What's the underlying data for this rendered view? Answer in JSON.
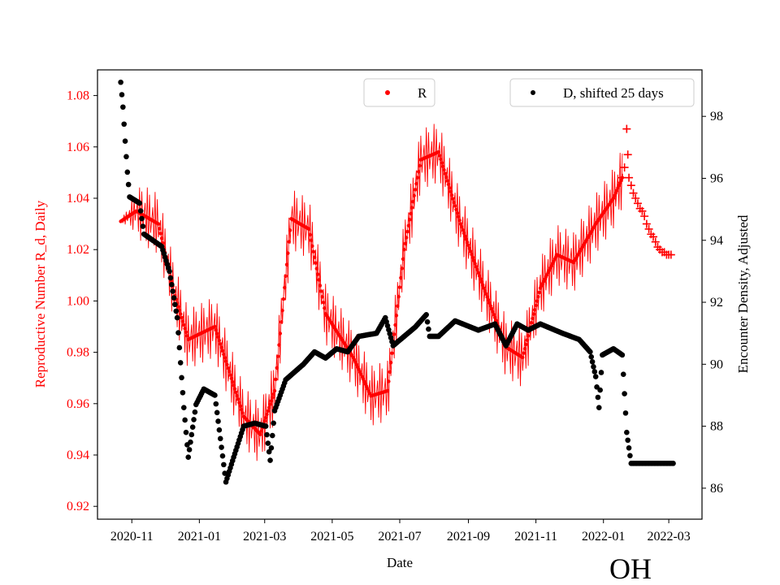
{
  "state_label": "OH",
  "colors": {
    "r_series": "#ff0000",
    "d_series": "#000000",
    "axes": "#000000",
    "background": "#ffffff"
  },
  "chart_data": {
    "type": "scatter",
    "xlabel": "Date",
    "ylabel_left": "Reproductive Number R_d, Daily",
    "ylabel_right": "Encounter Density, Adjusted",
    "xlim": [
      "2020-10-01",
      "2022-03-31"
    ],
    "ylim_left": [
      0.915,
      1.09
    ],
    "ylim_right": [
      85.0,
      99.5
    ],
    "x_ticks": [
      "2020-11",
      "2021-01",
      "2021-03",
      "2021-05",
      "2021-07",
      "2021-09",
      "2021-11",
      "2022-01",
      "2022-03"
    ],
    "y_ticks_left": [
      "0.92",
      "0.94",
      "0.96",
      "0.98",
      "1.00",
      "1.02",
      "1.04",
      "1.06",
      "1.08"
    ],
    "y_ticks_right": [
      "86",
      "88",
      "90",
      "92",
      "94",
      "96",
      "98"
    ],
    "legend_r": {
      "label": "R",
      "position": "upper-center"
    },
    "legend_d": {
      "label": "D, shifted 25 days",
      "position": "upper-right"
    },
    "series": [
      {
        "name": "R",
        "axis": "left",
        "marker": "dot",
        "color": "#ff0000",
        "daily_oscillation_amplitude": 0.012,
        "anchors": [
          [
            "2020-10-22",
            1.031
          ],
          [
            "2020-11-05",
            1.035
          ],
          [
            "2020-11-25",
            1.03
          ],
          [
            "2020-12-10",
            1.002
          ],
          [
            "2020-12-22",
            0.985
          ],
          [
            "2021-01-15",
            0.99
          ],
          [
            "2021-02-10",
            0.955
          ],
          [
            "2021-02-25",
            0.948
          ],
          [
            "2021-03-10",
            0.965
          ],
          [
            "2021-03-25",
            1.032
          ],
          [
            "2021-04-10",
            1.028
          ],
          [
            "2021-04-25",
            0.995
          ],
          [
            "2021-05-20",
            0.978
          ],
          [
            "2021-06-05",
            0.963
          ],
          [
            "2021-06-20",
            0.965
          ],
          [
            "2021-07-05",
            1.02
          ],
          [
            "2021-07-20",
            1.055
          ],
          [
            "2021-08-05",
            1.058
          ],
          [
            "2021-08-25",
            1.03
          ],
          [
            "2021-09-15",
            1.005
          ],
          [
            "2021-10-05",
            0.982
          ],
          [
            "2021-10-20",
            0.978
          ],
          [
            "2021-11-05",
            1.005
          ],
          [
            "2021-11-20",
            1.018
          ],
          [
            "2021-12-05",
            1.015
          ],
          [
            "2021-12-25",
            1.03
          ],
          [
            "2022-01-10",
            1.04
          ],
          [
            "2022-01-18",
            1.048
          ]
        ]
      },
      {
        "name": "R",
        "axis": "left",
        "marker": "plus",
        "color": "#ff0000",
        "points": [
          [
            "2022-01-18",
            1.048
          ],
          [
            "2022-01-20",
            1.052
          ],
          [
            "2022-01-22",
            1.067
          ],
          [
            "2022-01-23",
            1.057
          ],
          [
            "2022-01-24",
            1.048
          ],
          [
            "2022-01-26",
            1.045
          ],
          [
            "2022-01-28",
            1.042
          ],
          [
            "2022-01-30",
            1.04
          ],
          [
            "2022-02-01",
            1.038
          ],
          [
            "2022-02-03",
            1.036
          ],
          [
            "2022-02-05",
            1.035
          ],
          [
            "2022-02-07",
            1.033
          ],
          [
            "2022-02-09",
            1.03
          ],
          [
            "2022-02-11",
            1.028
          ],
          [
            "2022-02-13",
            1.026
          ],
          [
            "2022-02-15",
            1.025
          ],
          [
            "2022-02-17",
            1.023
          ],
          [
            "2022-02-19",
            1.021
          ],
          [
            "2022-02-21",
            1.02
          ],
          [
            "2022-02-23",
            1.019
          ],
          [
            "2022-02-25",
            1.019
          ],
          [
            "2022-02-27",
            1.018
          ],
          [
            "2022-03-01",
            1.018
          ],
          [
            "2022-03-03",
            1.018
          ]
        ]
      },
      {
        "name": "D, shifted 25 days",
        "axis": "right",
        "marker": "dot",
        "color": "#000000",
        "anchors": [
          [
            "2020-10-22",
            99.1
          ],
          [
            "2020-10-24",
            98.3
          ],
          [
            "2020-10-26",
            97.2
          ],
          [
            "2020-10-28",
            96.2
          ],
          [
            "2020-10-30",
            95.4
          ],
          [
            "2020-11-08",
            95.2
          ],
          [
            "2020-11-12",
            94.2
          ],
          [
            "2020-11-28",
            93.8
          ],
          [
            "2020-12-05",
            93.0
          ],
          [
            "2020-12-12",
            91.5
          ],
          [
            "2020-12-18",
            88.6
          ],
          [
            "2020-12-22",
            87.0
          ],
          [
            "2020-12-29",
            88.7
          ],
          [
            "2021-01-05",
            89.2
          ],
          [
            "2021-01-15",
            89.0
          ],
          [
            "2021-01-25",
            86.2
          ],
          [
            "2021-02-01",
            87.0
          ],
          [
            "2021-02-10",
            88.0
          ],
          [
            "2021-02-20",
            88.1
          ],
          [
            "2021-03-02",
            88.0
          ],
          [
            "2021-03-06",
            86.9
          ],
          [
            "2021-03-10",
            88.5
          ],
          [
            "2021-03-20",
            89.5
          ],
          [
            "2021-04-05",
            90.0
          ],
          [
            "2021-04-15",
            90.4
          ],
          [
            "2021-04-25",
            90.2
          ],
          [
            "2021-05-05",
            90.5
          ],
          [
            "2021-05-15",
            90.4
          ],
          [
            "2021-05-25",
            90.9
          ],
          [
            "2021-06-10",
            91.0
          ],
          [
            "2021-06-18",
            91.5
          ],
          [
            "2021-06-25",
            90.6
          ],
          [
            "2021-07-05",
            90.9
          ],
          [
            "2021-07-15",
            91.2
          ],
          [
            "2021-07-25",
            91.6
          ],
          [
            "2021-07-28",
            90.9
          ],
          [
            "2021-08-05",
            90.9
          ],
          [
            "2021-08-20",
            91.4
          ],
          [
            "2021-09-10",
            91.1
          ],
          [
            "2021-09-25",
            91.3
          ],
          [
            "2021-10-05",
            90.6
          ],
          [
            "2021-10-15",
            91.3
          ],
          [
            "2021-10-25",
            91.1
          ],
          [
            "2021-11-05",
            91.3
          ],
          [
            "2021-11-25",
            91.0
          ],
          [
            "2021-12-10",
            90.8
          ],
          [
            "2021-12-20",
            90.4
          ],
          [
            "2021-12-25",
            89.6
          ],
          [
            "2021-12-28",
            88.6
          ],
          [
            "2021-12-31",
            90.3
          ],
          [
            "2022-01-10",
            90.5
          ],
          [
            "2022-01-18",
            90.3
          ],
          [
            "2022-01-22",
            87.8
          ],
          [
            "2022-01-26",
            86.8
          ],
          [
            "2022-03-05",
            86.8
          ]
        ]
      }
    ]
  }
}
